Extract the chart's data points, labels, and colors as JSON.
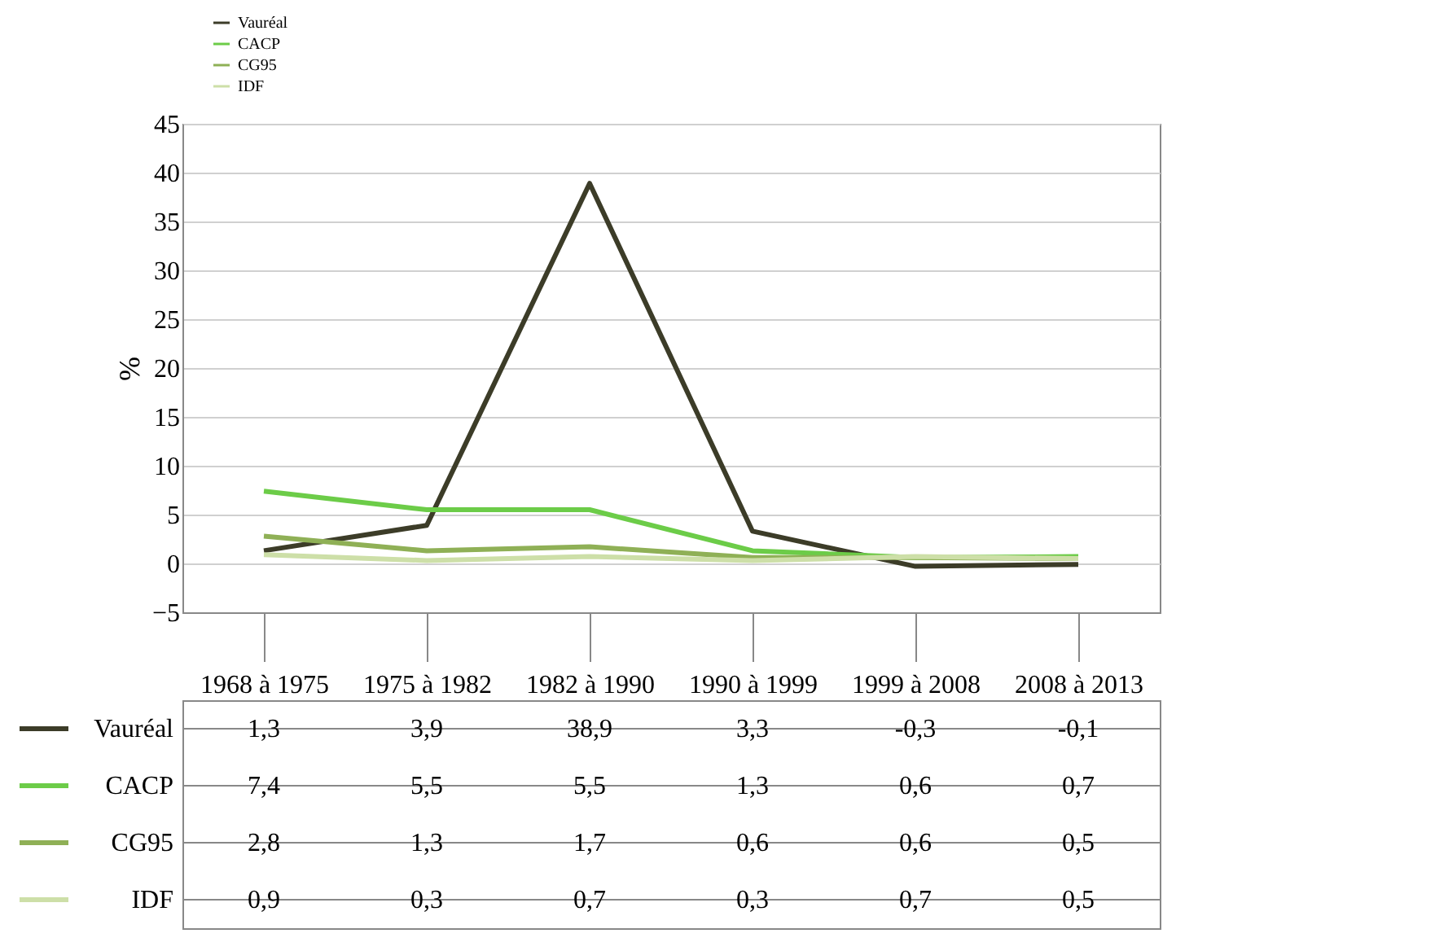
{
  "chart_data": {
    "type": "line",
    "ylabel": "%",
    "categories": [
      "1968 à 1975",
      "1975 à 1982",
      "1982 à 1990",
      "1990 à 1999",
      "1999 à 2008",
      "2008 à 2013"
    ],
    "series": [
      {
        "name": "Vauréal",
        "color": "#3c3c28",
        "values": [
          1.3,
          3.9,
          38.9,
          3.3,
          -0.3,
          -0.1
        ],
        "value_labels": [
          "1,3",
          "3,9",
          "38,9",
          "3,3",
          "-0,3",
          "-0,1"
        ]
      },
      {
        "name": "CACP",
        "color": "#6ccc48",
        "values": [
          7.4,
          5.5,
          5.5,
          1.3,
          0.6,
          0.7
        ],
        "value_labels": [
          "7,4",
          "5,5",
          "5,5",
          "1,3",
          "0,6",
          "0,7"
        ]
      },
      {
        "name": "CG95",
        "color": "#8fb056",
        "values": [
          2.8,
          1.3,
          1.7,
          0.6,
          0.6,
          0.5
        ],
        "value_labels": [
          "2,8",
          "1,3",
          "1,7",
          "0,6",
          "0,6",
          "0,5"
        ]
      },
      {
        "name": "IDF",
        "color": "#cddfa8",
        "values": [
          0.9,
          0.3,
          0.7,
          0.3,
          0.7,
          0.5
        ],
        "value_labels": [
          "0,9",
          "0,3",
          "0,7",
          "0,3",
          "0,7",
          "0,5"
        ]
      }
    ],
    "ylim": [
      -5,
      45
    ],
    "yticks": [
      -5,
      0,
      5,
      10,
      15,
      20,
      25,
      30,
      35,
      40,
      45
    ],
    "grid": "y",
    "legend": "bottom left",
    "marker": "none",
    "line_style": "solid"
  }
}
